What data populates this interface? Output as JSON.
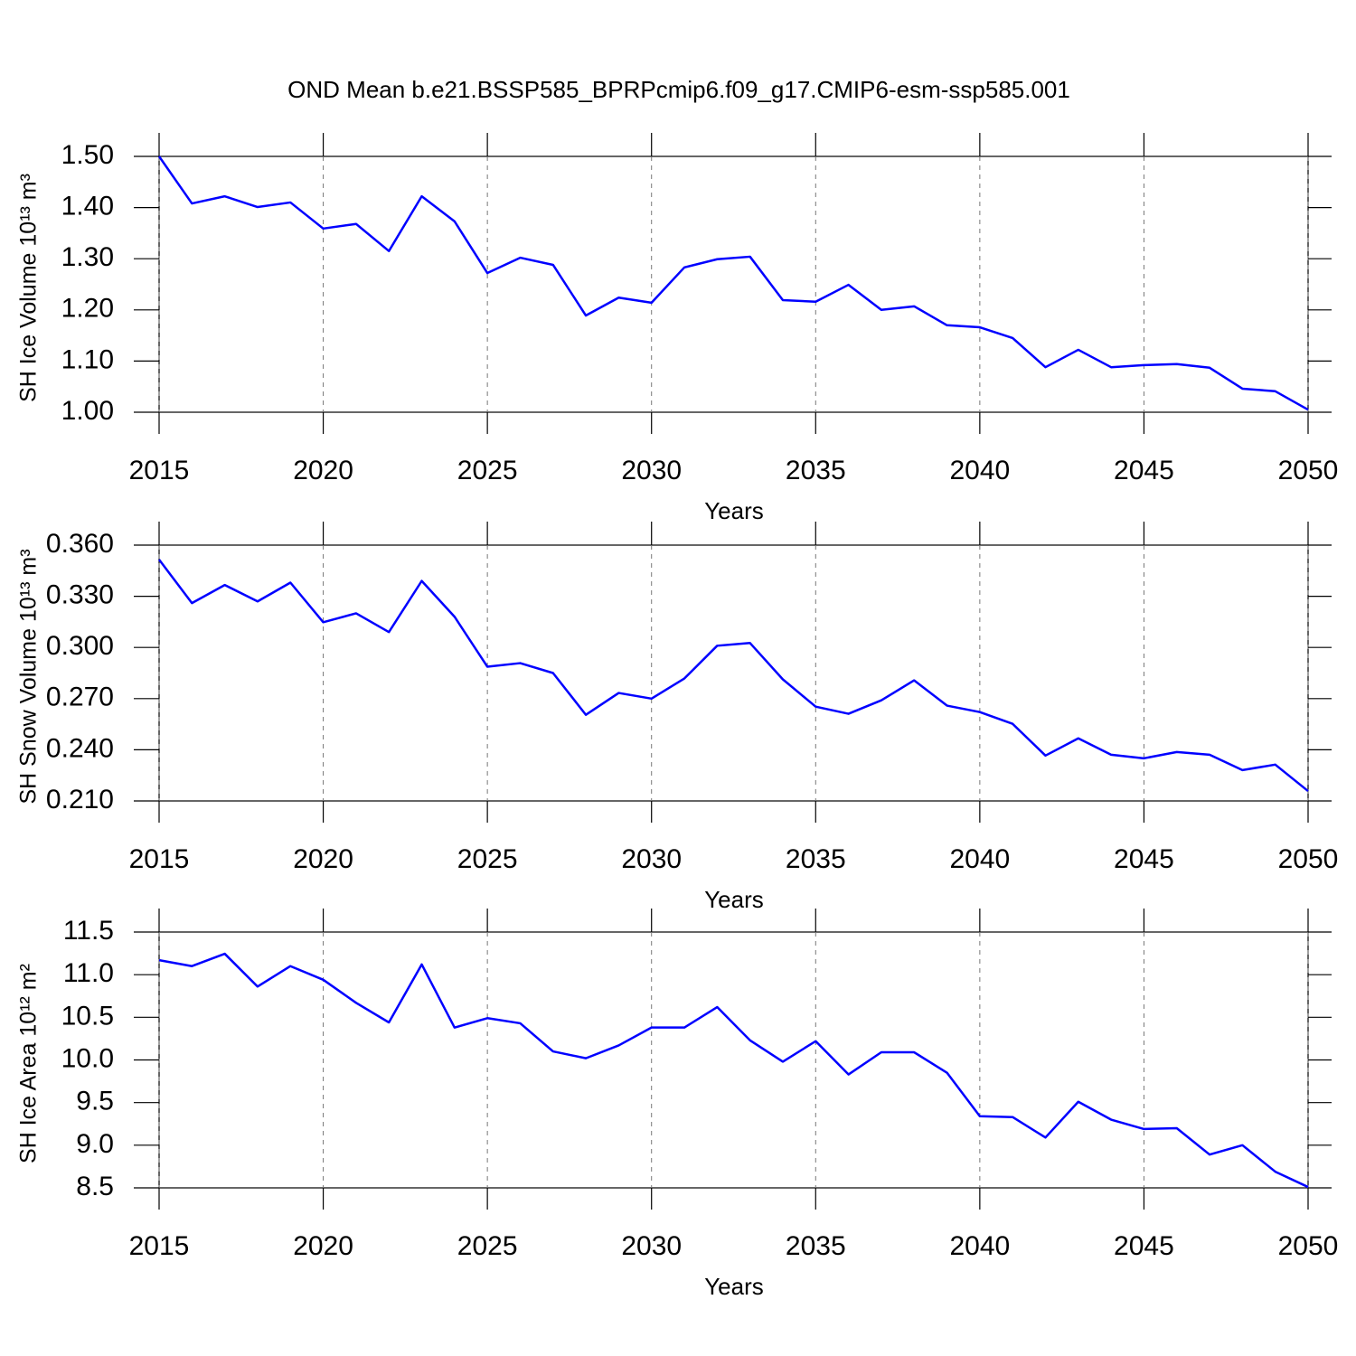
{
  "chart_data": [
    {
      "type": "line",
      "title": "OND Mean b.e21.BSSP585_BPRPcmip6.f09_g17.CMIP6-esm-ssp585.001",
      "ylabel": "SH Ice Volume 10¹³ m³",
      "xlabel": "Years",
      "color": "#0000ff",
      "xgrid": true,
      "x": [
        2015,
        2016,
        2017,
        2018,
        2019,
        2020,
        2021,
        2022,
        2023,
        2024,
        2025,
        2026,
        2027,
        2028,
        2029,
        2030,
        2031,
        2032,
        2033,
        2034,
        2035,
        2036,
        2037,
        2038,
        2039,
        2040,
        2041,
        2042,
        2043,
        2044,
        2045,
        2046,
        2047,
        2048,
        2049,
        2050
      ],
      "values": [
        1.5,
        1.408,
        1.422,
        1.401,
        1.41,
        1.359,
        1.368,
        1.315,
        1.422,
        1.373,
        1.272,
        1.302,
        1.288,
        1.189,
        1.224,
        1.214,
        1.283,
        1.299,
        1.304,
        1.219,
        1.216,
        1.249,
        1.2,
        1.207,
        1.17,
        1.166,
        1.145,
        1.088,
        1.122,
        1.088,
        1.092,
        1.094,
        1.087,
        1.046,
        1.041,
        1.005
      ],
      "xlim": [
        2015,
        2050
      ],
      "xticks": [
        2015,
        2020,
        2025,
        2030,
        2035,
        2040,
        2045,
        2050
      ],
      "ylim": [
        1.0,
        1.5
      ],
      "yticks": [
        {
          "value": 1.0,
          "label": "1.00"
        },
        {
          "value": 1.1,
          "label": "1.10"
        },
        {
          "value": 1.2,
          "label": "1.20"
        },
        {
          "value": 1.3,
          "label": "1.30"
        },
        {
          "value": 1.4,
          "label": "1.40"
        },
        {
          "value": 1.5,
          "label": "1.50"
        }
      ]
    },
    {
      "type": "line",
      "ylabel": "SH Snow Volume 10¹³ m³",
      "xlabel": "Years",
      "color": "#0000ff",
      "xgrid": true,
      "x": [
        2015,
        2016,
        2017,
        2018,
        2019,
        2020,
        2021,
        2022,
        2023,
        2024,
        2025,
        2026,
        2027,
        2028,
        2029,
        2030,
        2031,
        2032,
        2033,
        2034,
        2035,
        2036,
        2037,
        2038,
        2039,
        2040,
        2041,
        2042,
        2043,
        2044,
        2045,
        2046,
        2047,
        2048,
        2049,
        2050
      ],
      "values": [
        0.3515,
        0.326,
        0.3366,
        0.327,
        0.338,
        0.3148,
        0.32,
        0.309,
        0.339,
        0.318,
        0.2887,
        0.2908,
        0.285,
        0.2605,
        0.2733,
        0.27,
        0.2818,
        0.301,
        0.3026,
        0.2813,
        0.2653,
        0.2611,
        0.269,
        0.2807,
        0.2659,
        0.2621,
        0.2552,
        0.2366,
        0.2467,
        0.2371,
        0.235,
        0.2387,
        0.2371,
        0.2281,
        0.2313,
        0.2158
      ],
      "xlim": [
        2015,
        2050
      ],
      "xticks": [
        2015,
        2020,
        2025,
        2030,
        2035,
        2040,
        2045,
        2050
      ],
      "ylim": [
        0.21,
        0.36
      ],
      "yticks": [
        {
          "value": 0.21,
          "label": "0.210"
        },
        {
          "value": 0.24,
          "label": "0.240"
        },
        {
          "value": 0.27,
          "label": "0.270"
        },
        {
          "value": 0.3,
          "label": "0.300"
        },
        {
          "value": 0.33,
          "label": "0.330"
        },
        {
          "value": 0.36,
          "label": "0.360"
        }
      ]
    },
    {
      "type": "line",
      "ylabel": "SH Ice Area 10¹² m²",
      "xlabel": "Years",
      "color": "#0000ff",
      "xgrid": true,
      "x": [
        2015,
        2016,
        2017,
        2018,
        2019,
        2020,
        2021,
        2022,
        2023,
        2024,
        2025,
        2026,
        2027,
        2028,
        2029,
        2030,
        2031,
        2032,
        2033,
        2034,
        2035,
        2036,
        2037,
        2038,
        2039,
        2040,
        2041,
        2042,
        2043,
        2044,
        2045,
        2046,
        2047,
        2048,
        2049,
        2050
      ],
      "values": [
        11.17,
        11.1,
        11.245,
        10.86,
        11.1,
        10.94,
        10.67,
        10.44,
        11.12,
        10.38,
        10.49,
        10.43,
        10.1,
        10.02,
        10.17,
        10.38,
        10.38,
        10.62,
        10.23,
        9.98,
        10.22,
        9.83,
        10.09,
        10.09,
        9.85,
        9.34,
        9.33,
        9.09,
        9.51,
        9.3,
        9.19,
        9.2,
        8.89,
        9.0,
        8.69,
        8.51
      ],
      "xlim": [
        2015,
        2050
      ],
      "xticks": [
        2015,
        2020,
        2025,
        2030,
        2035,
        2040,
        2045,
        2050
      ],
      "ylim": [
        8.5,
        11.5
      ],
      "yticks": [
        8.5,
        {
          "value": 9.0,
          "label": "9.0"
        },
        9.5,
        {
          "value": 10.0,
          "label": "10.0"
        },
        10.5,
        {
          "value": 11.0,
          "label": "11.0"
        },
        11.5
      ]
    }
  ]
}
